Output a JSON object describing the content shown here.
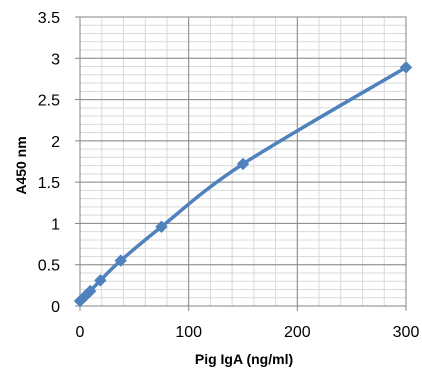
{
  "chart_data": {
    "type": "line",
    "title": "",
    "xlabel": "Pig IgA (ng/ml)",
    "ylabel": "A450 nm",
    "xlim": [
      0,
      300
    ],
    "ylim": [
      0,
      3.5
    ],
    "x_ticks": [
      "0",
      "100",
      "200",
      "300"
    ],
    "y_ticks": [
      "0",
      "0.5",
      "1",
      "1.5",
      "2",
      "2.5",
      "3",
      "3.5"
    ],
    "grid": true,
    "legend": "none",
    "series": [
      {
        "x": [
          0,
          4.69,
          9.38,
          18.75,
          37.5,
          75,
          150,
          300
        ],
        "values": [
          0.06,
          0.12,
          0.18,
          0.31,
          0.55,
          0.96,
          1.72,
          2.89
        ],
        "color": "#4f81bd",
        "marker": "diamond"
      }
    ]
  }
}
